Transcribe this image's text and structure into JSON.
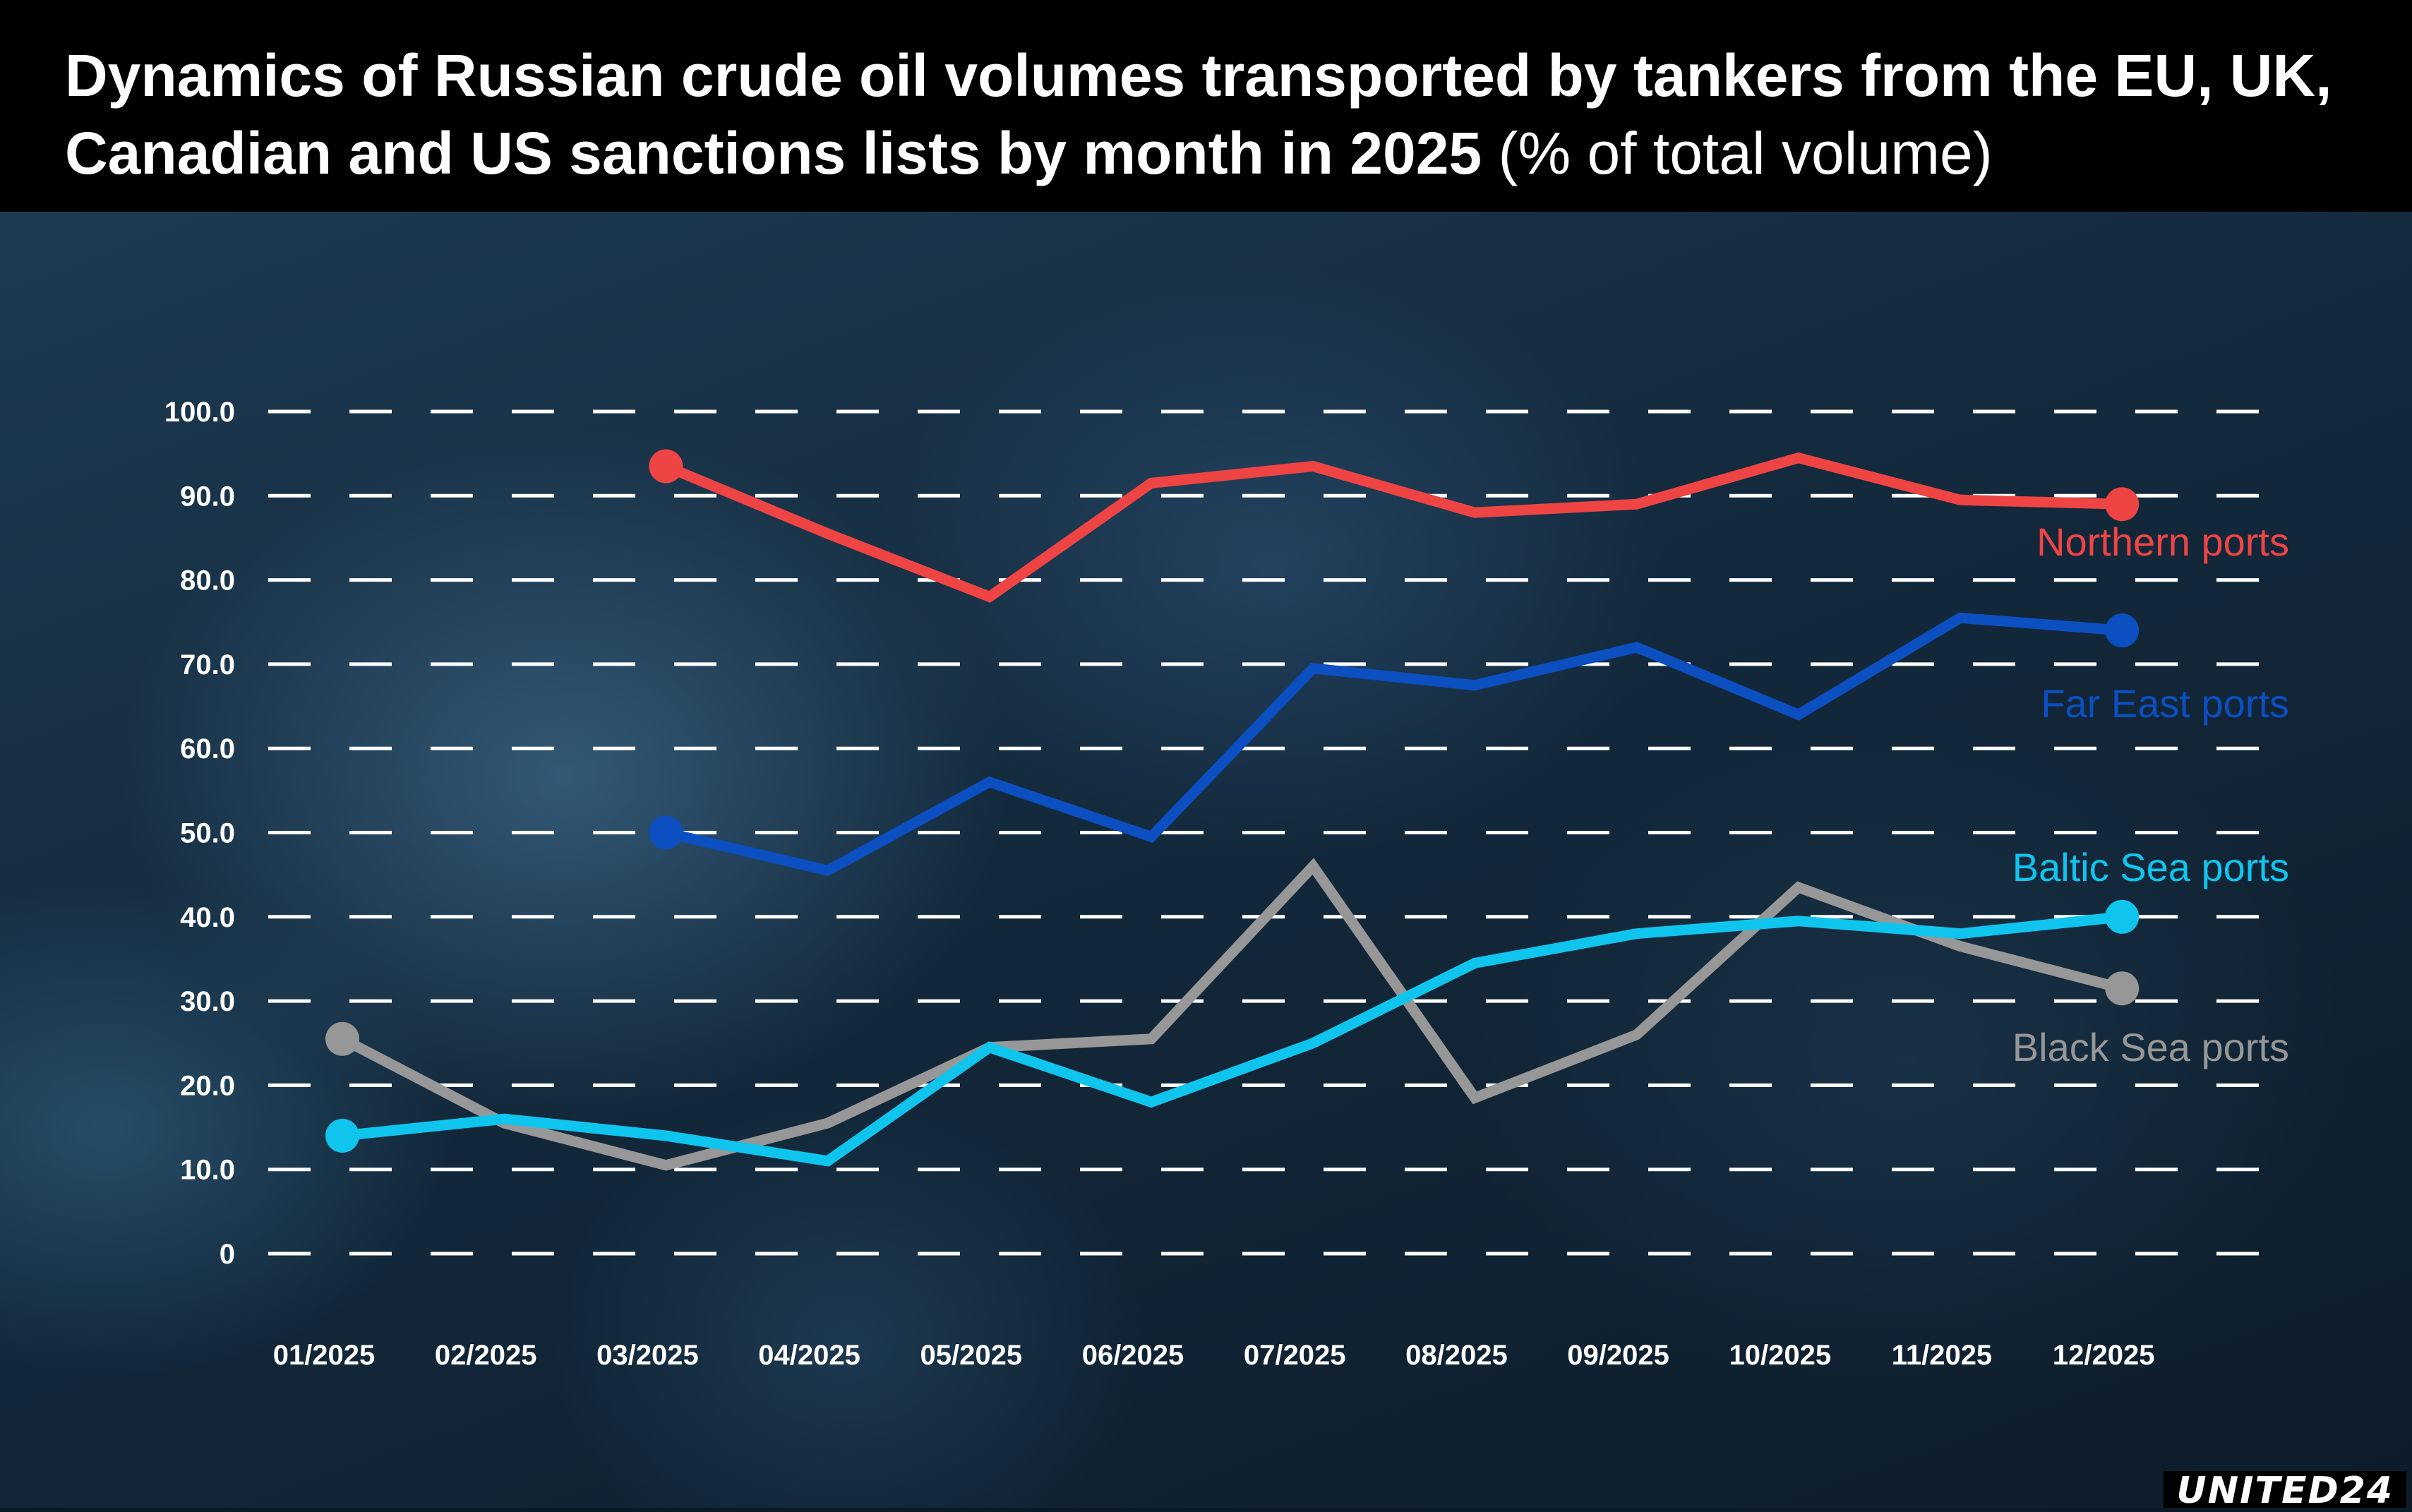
{
  "title": {
    "main": "Dynamics of Russian crude oil volumes transported by tankers from the EU, UK, Canadian and US sanctions lists by month in 2025",
    "unit": "(% of total volume)"
  },
  "logo": "UNITED24",
  "chart_data": {
    "type": "line",
    "title": "Dynamics of Russian crude oil volumes transported by tankers from the EU, UK, Canadian and US sanctions lists by month in 2025 (% of total volume)",
    "categories": [
      "01/2025",
      "02/2025",
      "03/2025",
      "04/2025",
      "05/2025",
      "06/2025",
      "07/2025",
      "08/2025",
      "09/2025",
      "10/2025",
      "11/2025",
      "12/2025"
    ],
    "yticks": [
      "0",
      "10.0",
      "20.0",
      "30.0",
      "40.0",
      "50.0",
      "60.0",
      "70.0",
      "80.0",
      "90.0",
      "100.0"
    ],
    "ylim": [
      0,
      100
    ],
    "grid": true,
    "legend": "inline-right",
    "series": [
      {
        "name": "Northern ports",
        "color": "#ef4444",
        "values": [
          null,
          null,
          93.5,
          85.5,
          78.0,
          91.5,
          93.5,
          88.0,
          89.0,
          94.5,
          89.5,
          89.0
        ]
      },
      {
        "name": "Far East ports",
        "color": "#0b4fc0",
        "values": [
          null,
          null,
          50.0,
          45.5,
          56.0,
          49.5,
          69.5,
          67.5,
          72.0,
          64.0,
          75.5,
          74.0
        ]
      },
      {
        "name": "Baltic Sea ports",
        "color": "#0fc5ee",
        "values": [
          14.0,
          16.0,
          14.0,
          11.0,
          24.5,
          18.0,
          25.0,
          34.5,
          38.0,
          39.5,
          38.0,
          40.0
        ]
      },
      {
        "name": "Black Sea ports",
        "color": "#979797",
        "values": [
          25.5,
          15.5,
          10.5,
          15.5,
          24.5,
          25.5,
          46.0,
          18.5,
          26.0,
          43.5,
          36.5,
          31.5
        ]
      }
    ]
  }
}
